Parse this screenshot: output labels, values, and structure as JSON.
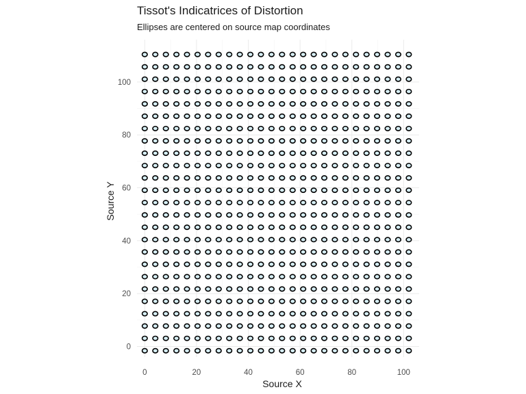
{
  "chart_data": {
    "type": "scatter",
    "title": "Tissot's Indicatrices of Distortion",
    "subtitle": "Ellipses are centered on source map coordinates",
    "xlabel": "Source X",
    "ylabel": "Source Y",
    "xlim": [
      -3,
      106
    ],
    "ylim": [
      -4,
      116
    ],
    "x_ticks": [
      0,
      20,
      40,
      60,
      80,
      100
    ],
    "y_ticks": [
      0,
      20,
      40,
      60,
      80,
      100
    ],
    "grid": true,
    "colors": {
      "ellipse_fill": "#d6eef5",
      "ellipse_stroke": "#000000",
      "grid": "#ebebeb",
      "tick_label": "#4d4d4d",
      "text": "#1a1a1a"
    },
    "ellipse_semi_axis": 1.0,
    "centers_x": [
      0,
      4.08,
      8.16,
      12.24,
      16.32,
      20.4,
      24.48,
      28.56,
      32.64,
      36.72,
      40.8,
      44.88,
      48.96,
      53.04,
      57.12,
      61.2,
      65.28,
      69.36,
      73.44,
      77.52,
      81.6,
      85.68,
      89.76,
      93.84,
      97.92,
      102
    ],
    "centers_y": [
      -1.6,
      3.07,
      7.73,
      12.4,
      17.07,
      21.73,
      26.4,
      31.07,
      35.73,
      40.4,
      45.07,
      49.73,
      54.4,
      59.07,
      63.73,
      68.4,
      73.07,
      77.73,
      82.4,
      87.07,
      91.73,
      96.4,
      101.07,
      105.73,
      110.4
    ]
  }
}
